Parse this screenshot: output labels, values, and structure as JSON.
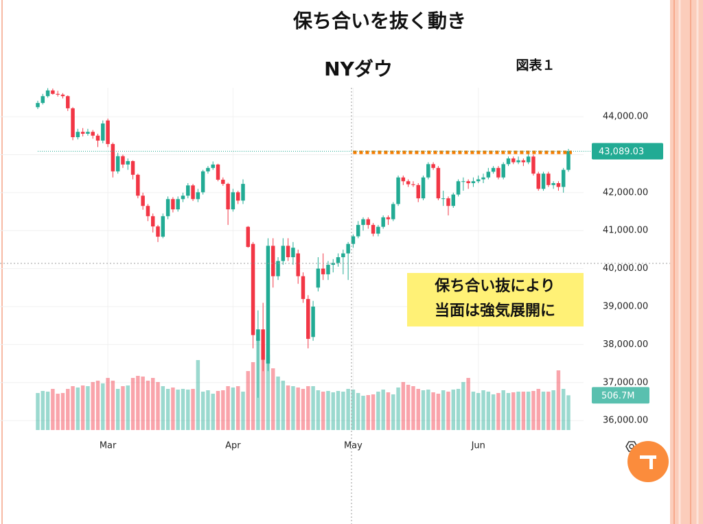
{
  "chart_data": {
    "type": "candlestick",
    "title": "保ち合いを抜く動き",
    "subtitle": "NYダウ",
    "figure_label": "図表１",
    "annotation": [
      "保ち合い抜により",
      "当面は強気展開に"
    ],
    "up_color": "#22ab94",
    "down_color": "#f23645",
    "ylim": [
      35750,
      44760
    ],
    "yticks": [
      {
        "value": 36000,
        "label": "36,000.00"
      },
      {
        "value": 37000,
        "label": "37,000.00"
      },
      {
        "value": 38000,
        "label": "38,000.00"
      },
      {
        "value": 39000,
        "label": "39,000.00"
      },
      {
        "value": 40000,
        "label": "40,000.00"
      },
      {
        "value": 41000,
        "label": "41,000.00"
      },
      {
        "value": 42000,
        "label": "42,000.00"
      },
      {
        "value": 43000,
        "label": "43,000.00"
      },
      {
        "value": 44000,
        "label": "44,000.00"
      }
    ],
    "xlim": [
      -1,
      107
    ],
    "xticks": [
      {
        "value": 14,
        "label": "Mar"
      },
      {
        "value": 39,
        "label": "Apr"
      },
      {
        "value": 63,
        "label": "May"
      },
      {
        "value": 88,
        "label": "Jun"
      }
    ],
    "volume_lim": [
      0,
      1500
    ],
    "last_price": {
      "value": 43089.03,
      "label": "43,089.03"
    },
    "last_volume": {
      "value": 506.7,
      "label": "506.7M"
    },
    "resistance": {
      "value": 43060,
      "from": 63,
      "color": "#f57c00"
    },
    "candles": [
      {
        "o": 44250,
        "h": 44420,
        "l": 44200,
        "c": 44360,
        "v": 540
      },
      {
        "o": 44360,
        "h": 44600,
        "l": 44320,
        "c": 44540,
        "v": 570
      },
      {
        "o": 44540,
        "h": 44750,
        "l": 44500,
        "c": 44690,
        "v": 560
      },
      {
        "o": 44690,
        "h": 44740,
        "l": 44580,
        "c": 44600,
        "v": 600
      },
      {
        "o": 44600,
        "h": 44680,
        "l": 44530,
        "c": 44580,
        "v": 530
      },
      {
        "o": 44580,
        "h": 44620,
        "l": 44480,
        "c": 44540,
        "v": 540
      },
      {
        "o": 44540,
        "h": 44560,
        "l": 44150,
        "c": 44220,
        "v": 600
      },
      {
        "o": 44220,
        "h": 44250,
        "l": 43380,
        "c": 43460,
        "v": 640
      },
      {
        "o": 43460,
        "h": 43680,
        "l": 43400,
        "c": 43600,
        "v": 620
      },
      {
        "o": 43600,
        "h": 43700,
        "l": 43480,
        "c": 43550,
        "v": 650
      },
      {
        "o": 43550,
        "h": 43680,
        "l": 43500,
        "c": 43600,
        "v": 640
      },
      {
        "o": 43600,
        "h": 43650,
        "l": 43420,
        "c": 43500,
        "v": 700
      },
      {
        "o": 43500,
        "h": 43550,
        "l": 43200,
        "c": 43370,
        "v": 720
      },
      {
        "o": 43370,
        "h": 43900,
        "l": 43300,
        "c": 43820,
        "v": 680
      },
      {
        "o": 43900,
        "h": 43950,
        "l": 43200,
        "c": 43280,
        "v": 760
      },
      {
        "o": 43280,
        "h": 43320,
        "l": 42400,
        "c": 42560,
        "v": 720
      },
      {
        "o": 42560,
        "h": 43050,
        "l": 42500,
        "c": 42960,
        "v": 600
      },
      {
        "o": 42960,
        "h": 43000,
        "l": 42650,
        "c": 42740,
        "v": 640
      },
      {
        "o": 42740,
        "h": 42900,
        "l": 42600,
        "c": 42830,
        "v": 650
      },
      {
        "o": 42830,
        "h": 42850,
        "l": 42350,
        "c": 42470,
        "v": 760
      },
      {
        "o": 42470,
        "h": 42500,
        "l": 41850,
        "c": 41920,
        "v": 790
      },
      {
        "o": 41920,
        "h": 42000,
        "l": 41550,
        "c": 41650,
        "v": 780
      },
      {
        "o": 41650,
        "h": 41700,
        "l": 41250,
        "c": 41380,
        "v": 720
      },
      {
        "o": 41380,
        "h": 41450,
        "l": 40950,
        "c": 41110,
        "v": 760
      },
      {
        "o": 41110,
        "h": 41150,
        "l": 40700,
        "c": 40840,
        "v": 700
      },
      {
        "o": 40840,
        "h": 41450,
        "l": 40800,
        "c": 41380,
        "v": 640
      },
      {
        "o": 41380,
        "h": 41900,
        "l": 41300,
        "c": 41830,
        "v": 600
      },
      {
        "o": 41830,
        "h": 41880,
        "l": 41480,
        "c": 41560,
        "v": 620
      },
      {
        "o": 41560,
        "h": 41900,
        "l": 41500,
        "c": 41830,
        "v": 590
      },
      {
        "o": 41830,
        "h": 42000,
        "l": 41750,
        "c": 41920,
        "v": 600
      },
      {
        "o": 41920,
        "h": 42250,
        "l": 41850,
        "c": 42190,
        "v": 590
      },
      {
        "o": 42190,
        "h": 42230,
        "l": 41780,
        "c": 41830,
        "v": 600
      },
      {
        "o": 41830,
        "h": 42100,
        "l": 41750,
        "c": 42010,
        "v": 1020
      },
      {
        "o": 42010,
        "h": 42600,
        "l": 41950,
        "c": 42560,
        "v": 560
      },
      {
        "o": 42560,
        "h": 42700,
        "l": 42500,
        "c": 42650,
        "v": 580
      },
      {
        "o": 42650,
        "h": 42820,
        "l": 42600,
        "c": 42740,
        "v": 530
      },
      {
        "o": 42740,
        "h": 42760,
        "l": 42300,
        "c": 42340,
        "v": 570
      },
      {
        "o": 42340,
        "h": 42400,
        "l": 42180,
        "c": 42230,
        "v": 580
      },
      {
        "o": 42230,
        "h": 42260,
        "l": 41150,
        "c": 41560,
        "v": 640
      },
      {
        "o": 41560,
        "h": 42100,
        "l": 41500,
        "c": 42010,
        "v": 620
      },
      {
        "o": 42010,
        "h": 42050,
        "l": 41700,
        "c": 41790,
        "v": 640
      },
      {
        "o": 41790,
        "h": 42350,
        "l": 41700,
        "c": 42230,
        "v": 560
      },
      {
        "o": 41100,
        "h": 41120,
        "l": 40550,
        "c": 40570,
        "v": 860
      },
      {
        "o": 40650,
        "h": 40700,
        "l": 37900,
        "c": 38250,
        "v": 990
      },
      {
        "o": 38100,
        "h": 38900,
        "l": 36600,
        "c": 38400,
        "v": 1340
      },
      {
        "o": 38400,
        "h": 39100,
        "l": 37300,
        "c": 37600,
        "v": 1250
      },
      {
        "o": 37500,
        "h": 40800,
        "l": 37300,
        "c": 40600,
        "v": 1100
      },
      {
        "o": 40600,
        "h": 40800,
        "l": 39500,
        "c": 39800,
        "v": 900
      },
      {
        "o": 39800,
        "h": 40300,
        "l": 39700,
        "c": 40200,
        "v": 780
      },
      {
        "o": 40200,
        "h": 40800,
        "l": 40100,
        "c": 40600,
        "v": 720
      },
      {
        "o": 40600,
        "h": 40800,
        "l": 40200,
        "c": 40300,
        "v": 650
      },
      {
        "o": 40300,
        "h": 40700,
        "l": 40100,
        "c": 40550,
        "v": 640
      },
      {
        "o": 40400,
        "h": 40500,
        "l": 39600,
        "c": 39800,
        "v": 620
      },
      {
        "o": 39800,
        "h": 39900,
        "l": 39100,
        "c": 39200,
        "v": 600
      },
      {
        "o": 39200,
        "h": 39300,
        "l": 37900,
        "c": 38150,
        "v": 640
      },
      {
        "o": 38200,
        "h": 39150,
        "l": 38100,
        "c": 39000,
        "v": 640
      },
      {
        "o": 39500,
        "h": 40300,
        "l": 39400,
        "c": 40000,
        "v": 580
      },
      {
        "o": 40000,
        "h": 40400,
        "l": 39700,
        "c": 39850,
        "v": 560
      },
      {
        "o": 39850,
        "h": 40200,
        "l": 39700,
        "c": 40100,
        "v": 570
      },
      {
        "o": 40100,
        "h": 40250,
        "l": 39900,
        "c": 40150,
        "v": 550
      },
      {
        "o": 40150,
        "h": 40400,
        "l": 40050,
        "c": 40300,
        "v": 570
      },
      {
        "o": 40300,
        "h": 40500,
        "l": 39850,
        "c": 40400,
        "v": 560
      },
      {
        "o": 40400,
        "h": 40700,
        "l": 39700,
        "c": 40650,
        "v": 600
      },
      {
        "o": 40650,
        "h": 40900,
        "l": 40550,
        "c": 40850,
        "v": 590
      },
      {
        "o": 40850,
        "h": 41250,
        "l": 40800,
        "c": 41150,
        "v": 540
      },
      {
        "o": 41150,
        "h": 41350,
        "l": 41000,
        "c": 41300,
        "v": 500
      },
      {
        "o": 41300,
        "h": 41350,
        "l": 41050,
        "c": 41150,
        "v": 510
      },
      {
        "o": 41150,
        "h": 41200,
        "l": 40850,
        "c": 40920,
        "v": 520
      },
      {
        "o": 40920,
        "h": 41150,
        "l": 40850,
        "c": 41100,
        "v": 560
      },
      {
        "o": 41100,
        "h": 41400,
        "l": 41050,
        "c": 41350,
        "v": 590
      },
      {
        "o": 41350,
        "h": 41400,
        "l": 41150,
        "c": 41300,
        "v": 550
      },
      {
        "o": 41300,
        "h": 41750,
        "l": 41250,
        "c": 41700,
        "v": 520
      },
      {
        "o": 41700,
        "h": 42450,
        "l": 41650,
        "c": 42400,
        "v": 620
      },
      {
        "o": 42400,
        "h": 42450,
        "l": 42200,
        "c": 42300,
        "v": 700
      },
      {
        "o": 42300,
        "h": 42350,
        "l": 42150,
        "c": 42220,
        "v": 660
      },
      {
        "o": 42220,
        "h": 42300,
        "l": 42150,
        "c": 42200,
        "v": 640
      },
      {
        "o": 42200,
        "h": 42250,
        "l": 41750,
        "c": 41850,
        "v": 600
      },
      {
        "o": 41850,
        "h": 42450,
        "l": 41800,
        "c": 42400,
        "v": 580
      },
      {
        "o": 42400,
        "h": 42800,
        "l": 42350,
        "c": 42750,
        "v": 590
      },
      {
        "o": 42750,
        "h": 42800,
        "l": 42600,
        "c": 42650,
        "v": 550
      },
      {
        "o": 42650,
        "h": 42700,
        "l": 41800,
        "c": 41850,
        "v": 530
      },
      {
        "o": 41850,
        "h": 42050,
        "l": 41650,
        "c": 41850,
        "v": 580
      },
      {
        "o": 41850,
        "h": 41900,
        "l": 41400,
        "c": 41650,
        "v": 560
      },
      {
        "o": 41650,
        "h": 42000,
        "l": 41600,
        "c": 41950,
        "v": 590
      },
      {
        "o": 41950,
        "h": 42350,
        "l": 41900,
        "c": 42300,
        "v": 600
      },
      {
        "o": 42300,
        "h": 42400,
        "l": 42050,
        "c": 42300,
        "v": 700
      },
      {
        "o": 42300,
        "h": 42350,
        "l": 42100,
        "c": 42250,
        "v": 760
      },
      {
        "o": 42250,
        "h": 42400,
        "l": 42150,
        "c": 42300,
        "v": 560
      },
      {
        "o": 42300,
        "h": 42450,
        "l": 42250,
        "c": 42350,
        "v": 540
      },
      {
        "o": 42350,
        "h": 42500,
        "l": 42250,
        "c": 42400,
        "v": 580
      },
      {
        "o": 42400,
        "h": 42650,
        "l": 42350,
        "c": 42550,
        "v": 560
      },
      {
        "o": 42550,
        "h": 42700,
        "l": 42500,
        "c": 42650,
        "v": 520
      },
      {
        "o": 42650,
        "h": 42700,
        "l": 42350,
        "c": 42400,
        "v": 540
      },
      {
        "o": 42400,
        "h": 42800,
        "l": 42350,
        "c": 42750,
        "v": 580
      },
      {
        "o": 42750,
        "h": 42950,
        "l": 42700,
        "c": 42900,
        "v": 540
      },
      {
        "o": 42900,
        "h": 42950,
        "l": 42750,
        "c": 42800,
        "v": 550
      },
      {
        "o": 42800,
        "h": 42950,
        "l": 42750,
        "c": 42850,
        "v": 560
      },
      {
        "o": 42850,
        "h": 42900,
        "l": 42700,
        "c": 42800,
        "v": 560
      },
      {
        "o": 42800,
        "h": 43050,
        "l": 42750,
        "c": 42950,
        "v": 560
      },
      {
        "o": 42950,
        "h": 43000,
        "l": 42450,
        "c": 42500,
        "v": 570
      },
      {
        "o": 42500,
        "h": 42550,
        "l": 42050,
        "c": 42100,
        "v": 600
      },
      {
        "o": 42100,
        "h": 42550,
        "l": 42050,
        "c": 42500,
        "v": 560
      },
      {
        "o": 42500,
        "h": 42550,
        "l": 42150,
        "c": 42200,
        "v": 560
      },
      {
        "o": 42200,
        "h": 42300,
        "l": 42100,
        "c": 42250,
        "v": 580
      },
      {
        "o": 42250,
        "h": 42300,
        "l": 42050,
        "c": 42150,
        "v": 870
      },
      {
        "o": 42150,
        "h": 42650,
        "l": 42000,
        "c": 42600,
        "v": 600
      },
      {
        "o": 42600,
        "h": 43150,
        "l": 42550,
        "c": 43089.03,
        "v": 506.7
      }
    ]
  }
}
